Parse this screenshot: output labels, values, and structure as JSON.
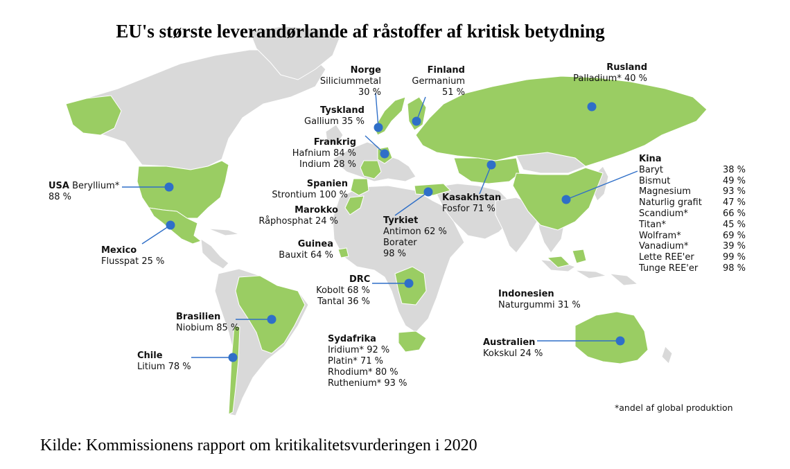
{
  "title": "EU's største leverandørlande af råstoffer af kritisk betydning",
  "source": "Kilde: Kommissionens rapport om kritikalitetsvurderingen i 2020",
  "footnote": "*andel af global produktion",
  "colors": {
    "land_default": "#d9d9d9",
    "land_highlight": "#9acd63",
    "marker": "#2f6fc8",
    "leader": "#2f6fc8"
  },
  "countries": {
    "usa": {
      "name": "USA",
      "material": "Beryllium*",
      "share": "88 %"
    },
    "mexico": {
      "name": "Mexico",
      "material": "Flusspat",
      "share": "25 %"
    },
    "brasilien": {
      "name": "Brasilien",
      "material": "Niobium",
      "share": "85 %"
    },
    "chile": {
      "name": "Chile",
      "material": "Litium",
      "share": "78 %"
    },
    "norge": {
      "name": "Norge",
      "material": "Siliciummetal",
      "share": "30 %"
    },
    "finland": {
      "name": "Finland",
      "material": "Germanium",
      "share": "51 %"
    },
    "tyskland": {
      "name": "Tyskland",
      "material": "Gallium",
      "share": "35 %"
    },
    "frankrig": {
      "name": "Frankrig",
      "items": [
        "Hafnium 84 %",
        "Indium 28 %"
      ]
    },
    "spanien": {
      "name": "Spanien",
      "material": "Strontium",
      "share": "100 %"
    },
    "marokko": {
      "name": "Marokko",
      "material": "Råphosphat",
      "share": "24 %"
    },
    "guinea": {
      "name": "Guinea",
      "material": "Bauxit",
      "share": "64 %"
    },
    "drc": {
      "name": "DRC",
      "items": [
        "Kobolt 68 %",
        "Tantal 36 %"
      ]
    },
    "sydafrika": {
      "name": "Sydafrika",
      "items": [
        "Iridium* 92 %",
        "Platin* 71 %",
        "Rhodium* 80 %",
        "Ruthenium* 93 %"
      ]
    },
    "tyrkiet": {
      "name": "Tyrkiet",
      "items": [
        "Antimon 62 %",
        "Borater",
        "98 %"
      ]
    },
    "kasakhstan": {
      "name": "Kasakhstan",
      "material": "Fosfor",
      "share": "71 %"
    },
    "rusland": {
      "name": "Rusland",
      "material": "Palladium*",
      "share": "40 %"
    },
    "indonesien": {
      "name": "Indonesien",
      "material": "Naturgummi",
      "share": "31 %"
    },
    "australien": {
      "name": "Australien",
      "material": "Kokskul",
      "share": "24 %"
    },
    "kina": {
      "name": "Kina",
      "items": [
        {
          "material": "Baryt",
          "share": "38 %"
        },
        {
          "material": "Bismut",
          "share": "49 %"
        },
        {
          "material": "Magnesium",
          "share": "93 %"
        },
        {
          "material": "Naturlig grafit",
          "share": "47 %"
        },
        {
          "material": "Scandium*",
          "share": "66 %"
        },
        {
          "material": "Titan*",
          "share": "45 %"
        },
        {
          "material": "Wolfram*",
          "share": "69 %"
        },
        {
          "material": "Vanadium*",
          "share": "39 %"
        },
        {
          "material": "Lette REE'er",
          "share": "99 %"
        },
        {
          "material": "Tunge REE'er",
          "share": "98 %"
        }
      ]
    }
  }
}
